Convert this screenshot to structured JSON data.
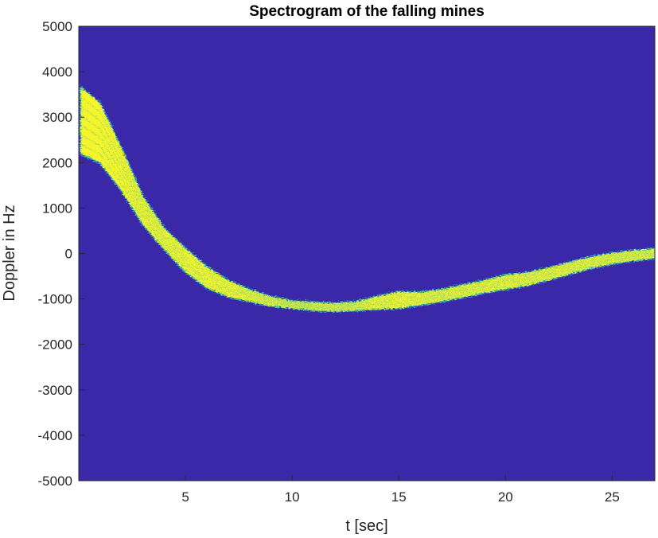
{
  "chart_data": {
    "type": "heatmap",
    "title": "Spectrogram of the falling mines",
    "xlabel": "t [sec]",
    "ylabel": "Doppler in Hz",
    "xlim": [
      0,
      27
    ],
    "ylim": [
      -5000,
      5000
    ],
    "xticks": [
      5,
      10,
      15,
      20,
      25
    ],
    "yticks": [
      5000,
      4000,
      3000,
      2000,
      1000,
      0,
      -1000,
      -2000,
      -3000,
      -4000,
      -5000
    ],
    "grid": false,
    "colors": {
      "background": "#3b28a8",
      "signal": "#f5f52a",
      "signal_edge": "#2fb0b8"
    },
    "signal_band": {
      "t": [
        0.1,
        1,
        2,
        3,
        4,
        5,
        6,
        7,
        8,
        9,
        10,
        11,
        12,
        13,
        14,
        15,
        16,
        17,
        18,
        19,
        20,
        21,
        22,
        23,
        24,
        25,
        26,
        27
      ],
      "upper_hz": [
        3650,
        3300,
        2300,
        1250,
        550,
        100,
        -300,
        -600,
        -800,
        -950,
        -1050,
        -1080,
        -1100,
        -1070,
        -950,
        -850,
        -860,
        -800,
        -700,
        -600,
        -480,
        -430,
        -330,
        -200,
        -80,
        0,
        60,
        100
      ],
      "lower_hz": [
        2200,
        2000,
        1400,
        650,
        100,
        -400,
        -750,
        -950,
        -1050,
        -1150,
        -1200,
        -1250,
        -1270,
        -1250,
        -1220,
        -1200,
        -1130,
        -1050,
        -960,
        -860,
        -780,
        -700,
        -580,
        -450,
        -320,
        -220,
        -150,
        -100
      ]
    }
  }
}
